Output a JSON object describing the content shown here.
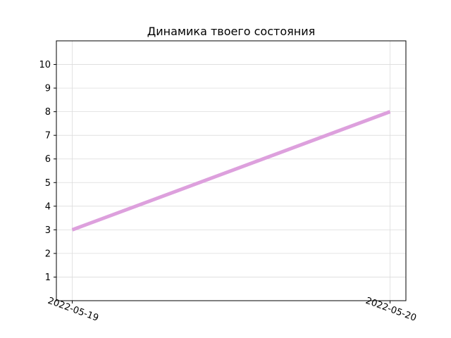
{
  "chart_data": {
    "type": "line",
    "title": "Динамика твоего состояния",
    "xlabel": "",
    "ylabel": "",
    "x": [
      "2022-05-19",
      "2022-05-20"
    ],
    "series": [
      {
        "values": [
          3,
          8
        ],
        "color": "#dda0dd"
      }
    ],
    "ylim": [
      0,
      11
    ],
    "yticks": [
      1,
      2,
      3,
      4,
      5,
      6,
      7,
      8,
      9,
      10
    ],
    "grid": true,
    "legend": "none"
  }
}
